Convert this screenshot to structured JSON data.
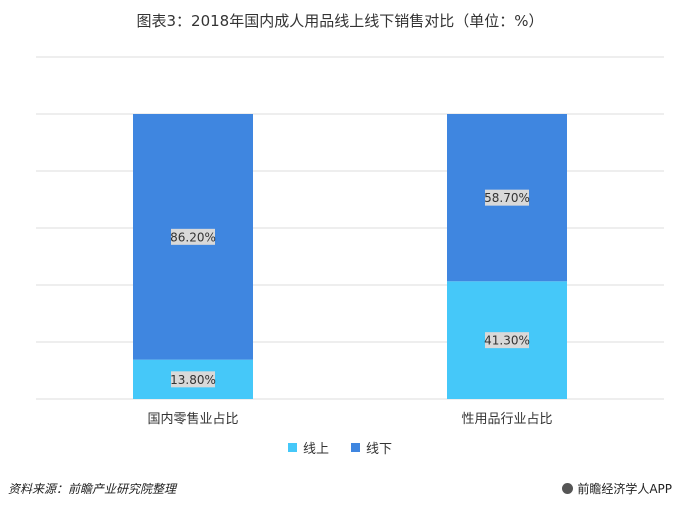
{
  "chart_data": {
    "type": "bar",
    "stacked": true,
    "title": "图表3：2018年国内成人用品线上线下销售对比（单位：%）",
    "categories": [
      "国内零售业占比",
      "性用品行业占比"
    ],
    "series": [
      {
        "name": "线上",
        "values": [
          13.8,
          41.3
        ],
        "labels": [
          "13.80%",
          "41.30%"
        ],
        "color": "#45c8f9"
      },
      {
        "name": "线下",
        "values": [
          86.2,
          58.7
        ],
        "labels": [
          "86.20%",
          "58.70%"
        ],
        "color": "#3f86e0"
      }
    ],
    "ylim": [
      0,
      100
    ],
    "grid": true,
    "legend": "bottom"
  },
  "footer": {
    "source": "资料来源：前瞻产业研究院整理",
    "brand": "前瞻经济学人APP"
  }
}
